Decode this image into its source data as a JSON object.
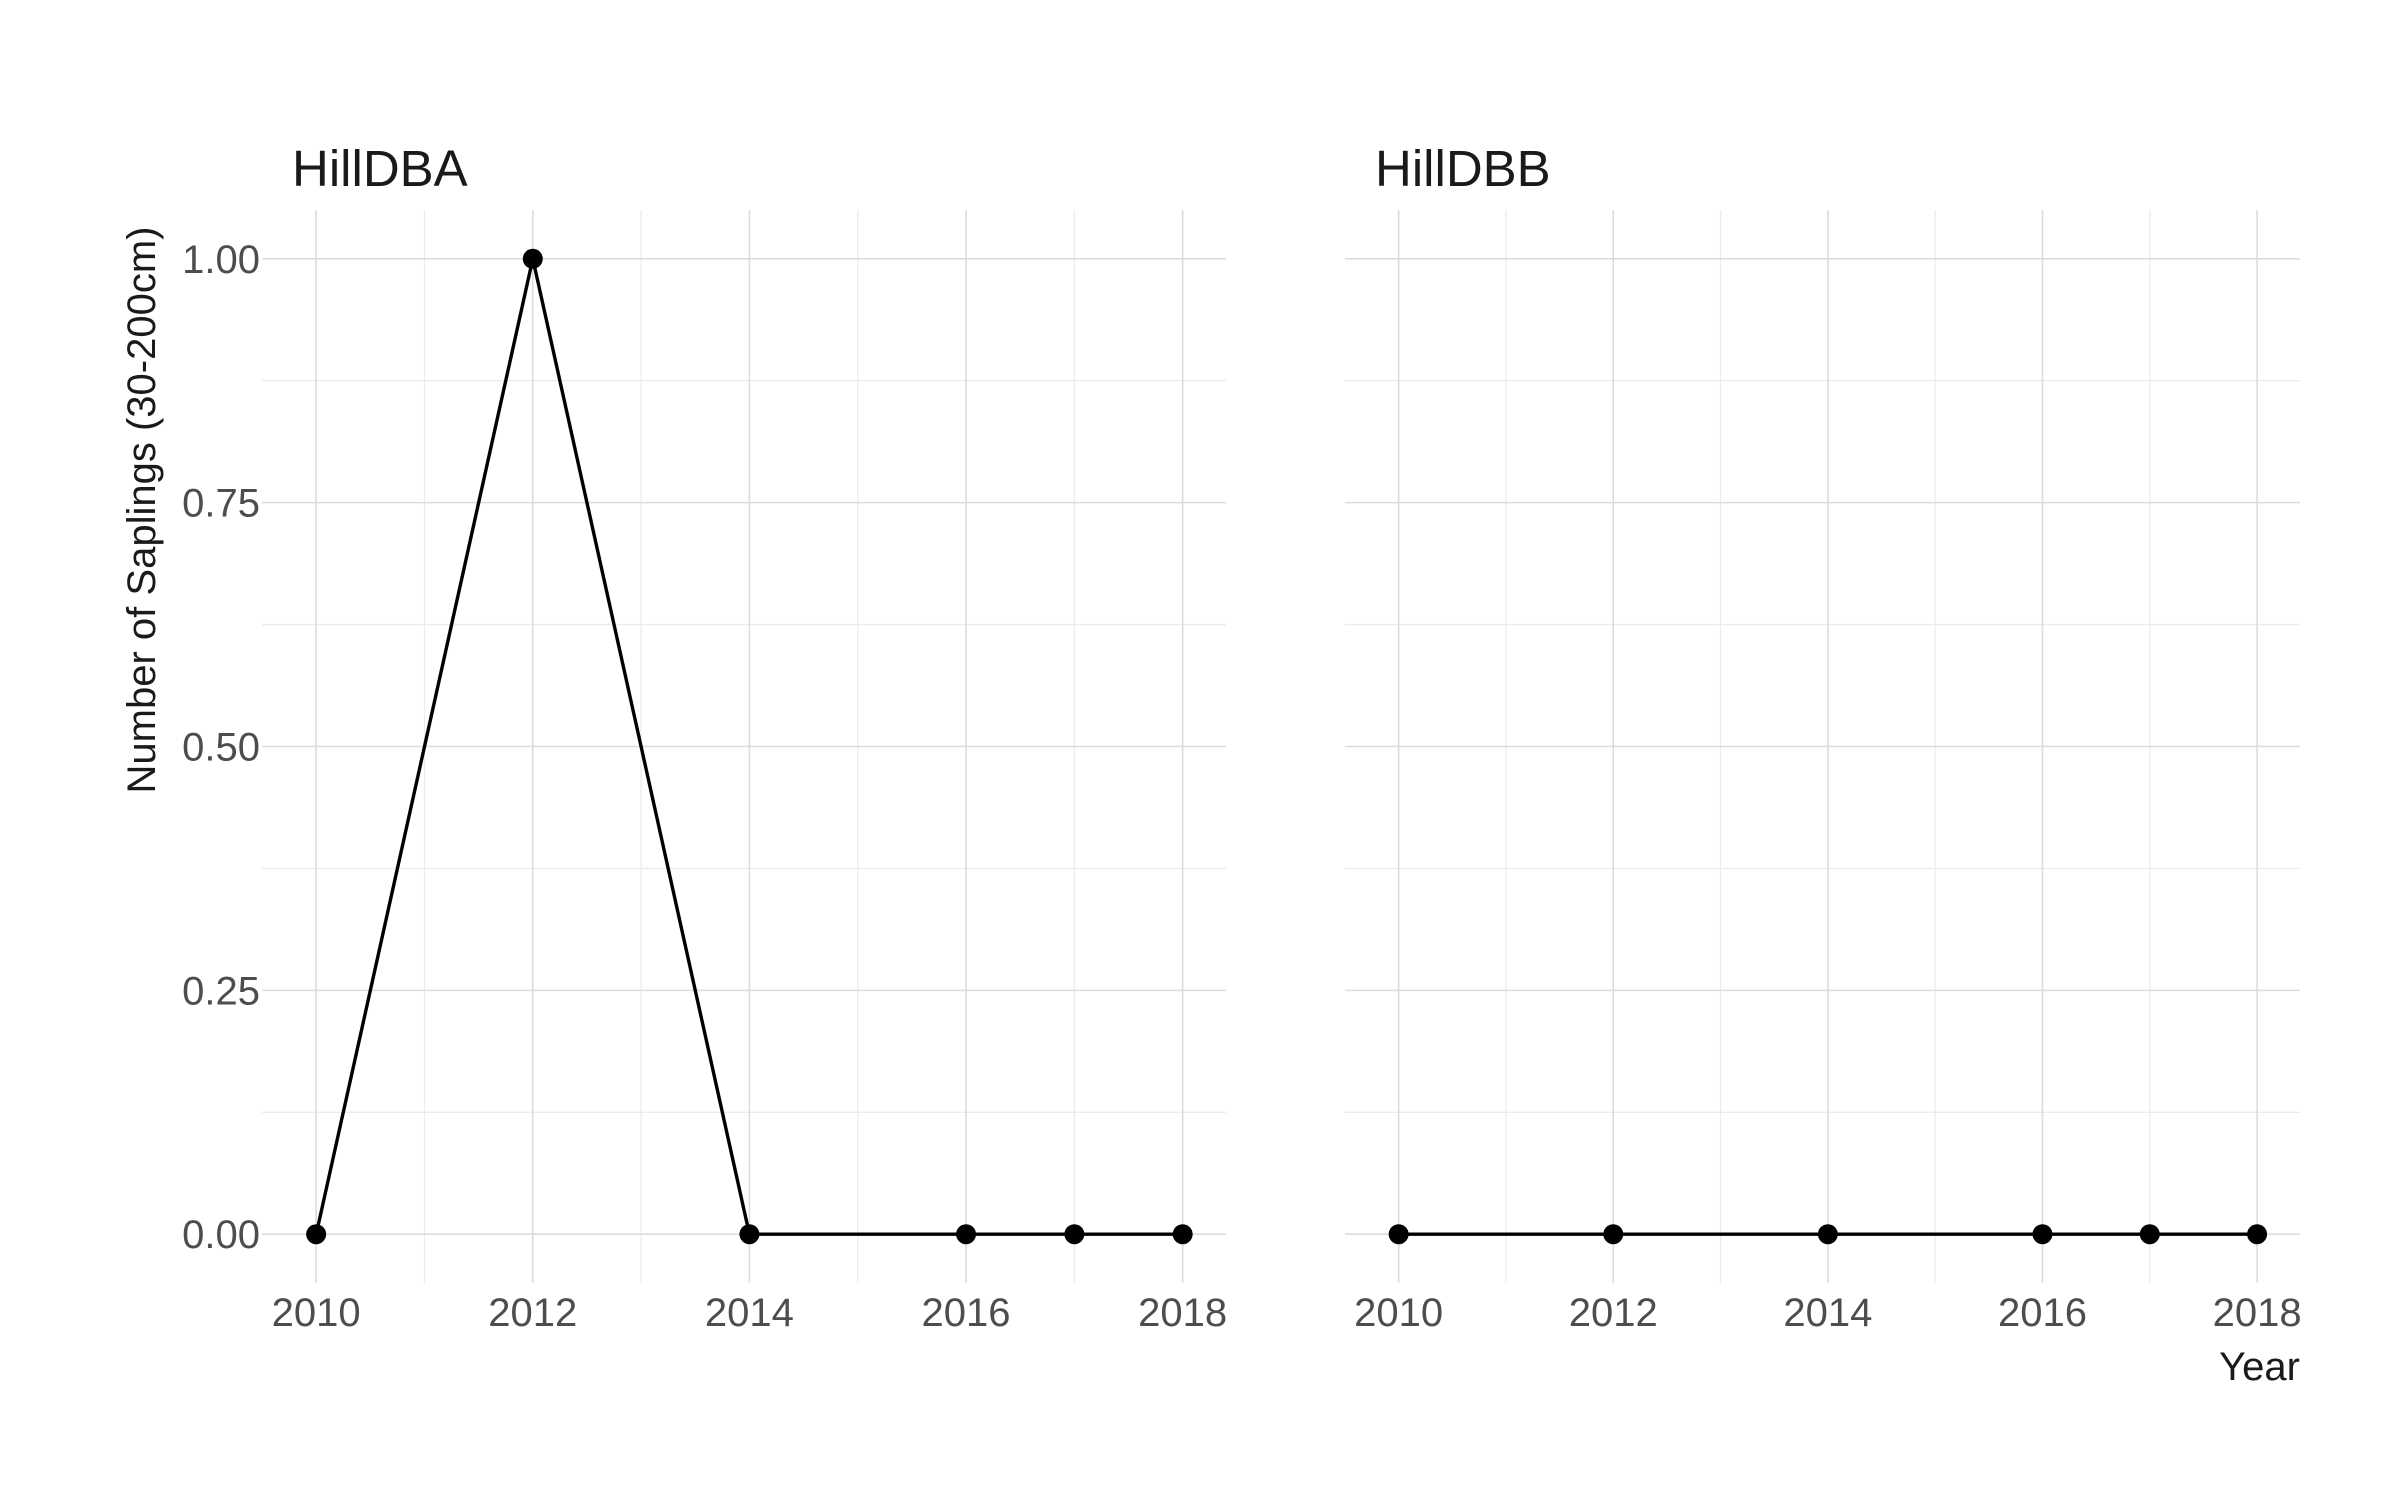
{
  "chart_data": {
    "type": "line",
    "facets": [
      {
        "title": "HillDBA",
        "x": [
          2010,
          2012,
          2014,
          2016,
          2017,
          2018
        ],
        "y": [
          0,
          1,
          0,
          0,
          0,
          0
        ]
      },
      {
        "title": "HillDBB",
        "x": [
          2010,
          2012,
          2014,
          2016,
          2017,
          2018
        ],
        "y": [
          0,
          0,
          0,
          0,
          0,
          0
        ]
      }
    ],
    "xlabel": "Year",
    "ylabel": "Number of Saplings (30-200cm)",
    "x_ticks": [
      2010,
      2012,
      2014,
      2016,
      2018
    ],
    "x_tick_labels": [
      "2010",
      "2012",
      "2014",
      "2016",
      "2018"
    ],
    "y_ticks": [
      0,
      0.25,
      0.5,
      0.75,
      1
    ],
    "y_tick_labels": [
      "0.00",
      "0.25",
      "0.50",
      "0.75",
      "1.00"
    ],
    "xlim": [
      2009.5,
      2018.4
    ],
    "ylim": [
      -0.05,
      1.05
    ],
    "shared_y_axis": true,
    "grid": true,
    "legend": "none",
    "colors": {
      "line": "#000000",
      "point": "#000000",
      "grid_major": "#dcdcdc",
      "grid_minor": "#ececec",
      "text": "#1a1a1a",
      "tick_text": "#4d4d4d"
    }
  }
}
